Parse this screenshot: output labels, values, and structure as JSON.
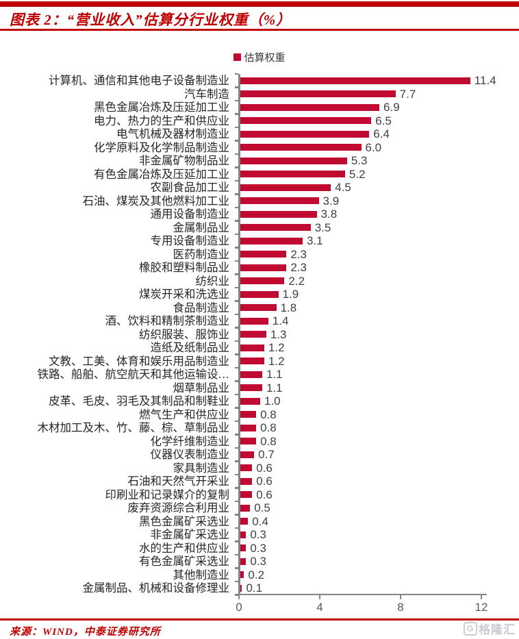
{
  "header": {
    "title": "图表 2：“营业收入”估算分行业权重（%）"
  },
  "chart_data": {
    "type": "bar",
    "orientation": "horizontal",
    "title": "图表 2：“营业收入”估算分行业权重（%）",
    "legend": [
      "估算权重"
    ],
    "legend_position": "top-center",
    "grid": false,
    "xlim": [
      0,
      12
    ],
    "xticks": [
      0,
      4,
      8,
      12
    ],
    "bar_color": "#C00A32",
    "value_label_decimals": 1,
    "categories": [
      "计算机、通信和其他电子设备制造业",
      "汽车制造",
      "黑色金属冶炼及压延加工业",
      "电力、热力的生产和供应业",
      "电气机械及器材制造业",
      "化学原料及化学制品制造业",
      "非金属矿物制品业",
      "有色金属冶炼及压延加工业",
      "农副食品加工业",
      "石油、煤炭及其他燃料加工业",
      "通用设备制造业",
      "金属制品业",
      "专用设备制造业",
      "医药制造业",
      "橡胶和塑料制品业",
      "纺织业",
      "煤炭开采和洗选业",
      "食品制造业",
      "酒、饮料和精制茶制造业",
      "纺织服装、服饰业",
      "造纸及纸制品业",
      "文教、工美、体育和娱乐用品制造业",
      "铁路、船舶、航空航天和其他运输设…",
      "烟草制品业",
      "皮革、毛皮、羽毛及其制品和制鞋业",
      "燃气生产和供应业",
      "木材加工及木、竹、藤、棕、草制品业",
      "化学纤维制造业",
      "仪器仪表制造业",
      "家具制造业",
      "石油和天然气开采业",
      "印刷业和记录媒介的复制",
      "废弃资源综合利用业",
      "黑色金属矿采选业",
      "非金属矿采选业",
      "水的生产和供应业",
      "有色金属矿采选业",
      "其他制造业",
      "金属制品、机械和设备修理业"
    ],
    "values": [
      11.4,
      7.7,
      6.9,
      6.5,
      6.4,
      6.0,
      5.3,
      5.2,
      4.5,
      3.9,
      3.8,
      3.5,
      3.1,
      2.3,
      2.3,
      2.2,
      1.9,
      1.8,
      1.4,
      1.3,
      1.2,
      1.2,
      1.1,
      1.1,
      1.0,
      0.8,
      0.8,
      0.8,
      0.7,
      0.6,
      0.6,
      0.6,
      0.5,
      0.4,
      0.3,
      0.3,
      0.3,
      0.2,
      0.1
    ]
  },
  "colors": {
    "accent_red": "#C00000",
    "bar_crimson": "#C00A32",
    "axis_gray": "#848484",
    "tick_label_gray": "#595959",
    "watermark_gray": "#C9CCD1"
  },
  "footer": {
    "source": "来源：WIND，中泰证券研究所"
  },
  "watermark": {
    "initial": "G",
    "text": "格隆汇"
  }
}
